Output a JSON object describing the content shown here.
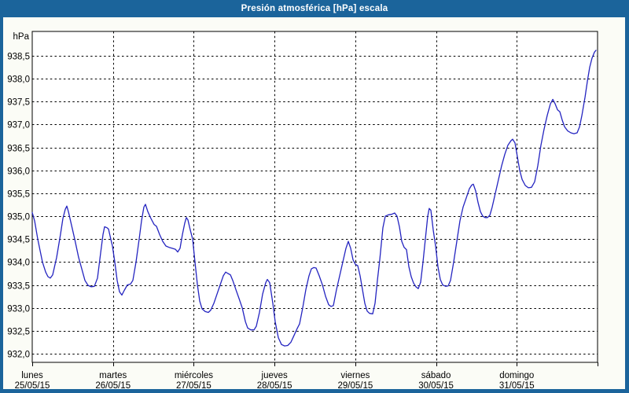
{
  "window": {
    "title": "Presión atmosférica [hPa] escala"
  },
  "colors": {
    "frame_blue": "#1b649b",
    "content_bg": "#fbfcf6",
    "plot_bg": "#ffffff",
    "grid_color": "#000000",
    "series_blue": "#2424c0",
    "title_text": "#ffffff",
    "axis_text": "#000000"
  },
  "chart_data": {
    "type": "line",
    "title": "Presión atmosférica [hPa] escala",
    "xlabel": "",
    "ylabel": "hPa",
    "grid": "dashed",
    "legend_position": "none",
    "y_axis": {
      "unit_label": "hPa",
      "min": 932.0,
      "max": 938.5,
      "tick_step": 0.5,
      "tick_labels": [
        "938,5",
        "938,0",
        "937,5",
        "937,0",
        "936,5",
        "936,0",
        "935,5",
        "935,0",
        "934,5",
        "934,0",
        "933,5",
        "933,0",
        "932,5",
        "932,0"
      ]
    },
    "x_axis": {
      "span_days": 7,
      "days": [
        {
          "name": "lunes",
          "date": "25/05/15"
        },
        {
          "name": "martes",
          "date": "26/05/15"
        },
        {
          "name": "miércoles",
          "date": "27/05/15"
        },
        {
          "name": "jueves",
          "date": "28/05/15"
        },
        {
          "name": "viernes",
          "date": "29/05/15"
        },
        {
          "name": "sábado",
          "date": "30/05/15"
        },
        {
          "name": "domingo",
          "date": "31/05/15"
        }
      ]
    },
    "series": [
      {
        "name": "Presión atmosférica",
        "color": "#2424c0",
        "points": [
          [
            0,
            935.08
          ],
          [
            0.029,
            934.9
          ],
          [
            0.068,
            934.5
          ],
          [
            0.127,
            934.0
          ],
          [
            0.166,
            933.78
          ],
          [
            0.195,
            933.68
          ],
          [
            0.224,
            933.65
          ],
          [
            0.253,
            933.72
          ],
          [
            0.302,
            934.1
          ],
          [
            0.35,
            934.6
          ],
          [
            0.38,
            934.95
          ],
          [
            0.409,
            935.15
          ],
          [
            0.428,
            935.22
          ],
          [
            0.448,
            935.1
          ],
          [
            0.487,
            934.8
          ],
          [
            0.526,
            934.5
          ],
          [
            0.574,
            934.1
          ],
          [
            0.613,
            933.85
          ],
          [
            0.652,
            933.6
          ],
          [
            0.691,
            933.49
          ],
          [
            0.73,
            933.46
          ],
          [
            0.769,
            933.47
          ],
          [
            0.808,
            933.65
          ],
          [
            0.847,
            934.2
          ],
          [
            0.876,
            934.6
          ],
          [
            0.896,
            934.77
          ],
          [
            0.925,
            934.75
          ],
          [
            0.944,
            934.72
          ],
          [
            0.973,
            934.5
          ],
          [
            0.993,
            934.35
          ],
          [
            1.022,
            934.0
          ],
          [
            1.051,
            933.6
          ],
          [
            1.081,
            933.35
          ],
          [
            1.11,
            933.28
          ],
          [
            1.139,
            933.38
          ],
          [
            1.178,
            933.5
          ],
          [
            1.217,
            933.52
          ],
          [
            1.246,
            933.6
          ],
          [
            1.285,
            934.0
          ],
          [
            1.324,
            934.5
          ],
          [
            1.353,
            934.9
          ],
          [
            1.382,
            935.2
          ],
          [
            1.402,
            935.26
          ],
          [
            1.431,
            935.1
          ],
          [
            1.47,
            934.95
          ],
          [
            1.509,
            934.82
          ],
          [
            1.538,
            934.78
          ],
          [
            1.577,
            934.6
          ],
          [
            1.616,
            934.45
          ],
          [
            1.655,
            934.35
          ],
          [
            1.694,
            934.32
          ],
          [
            1.733,
            934.3
          ],
          [
            1.772,
            934.28
          ],
          [
            1.801,
            934.22
          ],
          [
            1.83,
            934.3
          ],
          [
            1.86,
            934.6
          ],
          [
            1.889,
            934.85
          ],
          [
            1.908,
            934.97
          ],
          [
            1.928,
            934.92
          ],
          [
            1.957,
            934.7
          ],
          [
            1.986,
            934.5
          ],
          [
            2.015,
            934.0
          ],
          [
            2.045,
            933.5
          ],
          [
            2.074,
            933.15
          ],
          [
            2.103,
            932.98
          ],
          [
            2.142,
            932.92
          ],
          [
            2.181,
            932.9
          ],
          [
            2.21,
            932.95
          ],
          [
            2.249,
            933.1
          ],
          [
            2.288,
            933.3
          ],
          [
            2.327,
            933.5
          ],
          [
            2.366,
            933.7
          ],
          [
            2.395,
            933.78
          ],
          [
            2.424,
            933.75
          ],
          [
            2.454,
            933.72
          ],
          [
            2.483,
            933.6
          ],
          [
            2.522,
            933.4
          ],
          [
            2.561,
            933.2
          ],
          [
            2.6,
            933.0
          ],
          [
            2.639,
            932.7
          ],
          [
            2.668,
            932.56
          ],
          [
            2.707,
            932.52
          ],
          [
            2.746,
            932.52
          ],
          [
            2.775,
            932.6
          ],
          [
            2.814,
            932.9
          ],
          [
            2.853,
            933.3
          ],
          [
            2.892,
            933.55
          ],
          [
            2.911,
            933.62
          ],
          [
            2.94,
            933.55
          ],
          [
            2.979,
            933.1
          ],
          [
            3.008,
            932.7
          ],
          [
            3.047,
            932.35
          ],
          [
            3.086,
            932.2
          ],
          [
            3.125,
            932.17
          ],
          [
            3.164,
            932.18
          ],
          [
            3.203,
            932.25
          ],
          [
            3.242,
            932.4
          ],
          [
            3.281,
            932.55
          ],
          [
            3.31,
            932.65
          ],
          [
            3.349,
            933.0
          ],
          [
            3.388,
            933.4
          ],
          [
            3.427,
            933.7
          ],
          [
            3.456,
            933.85
          ],
          [
            3.485,
            933.88
          ],
          [
            3.515,
            933.87
          ],
          [
            3.554,
            933.7
          ],
          [
            3.593,
            933.5
          ],
          [
            3.632,
            933.25
          ],
          [
            3.67,
            933.07
          ],
          [
            3.7,
            933.03
          ],
          [
            3.729,
            933.05
          ],
          [
            3.768,
            933.4
          ],
          [
            3.807,
            933.7
          ],
          [
            3.846,
            934.0
          ],
          [
            3.885,
            934.3
          ],
          [
            3.914,
            934.45
          ],
          [
            3.943,
            934.3
          ],
          [
            3.972,
            934.05
          ],
          [
            4.001,
            933.95
          ],
          [
            4.031,
            933.92
          ],
          [
            4.06,
            933.7
          ],
          [
            4.089,
            933.4
          ],
          [
            4.118,
            933.1
          ],
          [
            4.147,
            932.93
          ],
          [
            4.177,
            932.88
          ],
          [
            4.216,
            932.87
          ],
          [
            4.245,
            933.1
          ],
          [
            4.274,
            933.6
          ],
          [
            4.303,
            934.05
          ],
          [
            4.342,
            934.75
          ],
          [
            4.371,
            935.0
          ],
          [
            4.41,
            935.03
          ],
          [
            4.449,
            935.04
          ],
          [
            4.488,
            935.07
          ],
          [
            4.517,
            935.0
          ],
          [
            4.547,
            934.77
          ],
          [
            4.576,
            934.45
          ],
          [
            4.605,
            934.32
          ],
          [
            4.634,
            934.27
          ],
          [
            4.663,
            933.9
          ],
          [
            4.693,
            933.68
          ],
          [
            4.722,
            933.54
          ],
          [
            4.751,
            933.46
          ],
          [
            4.78,
            933.42
          ],
          [
            4.809,
            933.56
          ],
          [
            4.839,
            934.0
          ],
          [
            4.868,
            934.5
          ],
          [
            4.897,
            935.0
          ],
          [
            4.916,
            935.17
          ],
          [
            4.936,
            935.13
          ],
          [
            4.965,
            934.7
          ],
          [
            4.994,
            934.35
          ],
          [
            5.024,
            933.9
          ],
          [
            5.053,
            933.62
          ],
          [
            5.082,
            933.5
          ],
          [
            5.121,
            933.47
          ],
          [
            5.15,
            933.48
          ],
          [
            5.179,
            933.6
          ],
          [
            5.218,
            934.0
          ],
          [
            5.257,
            934.45
          ],
          [
            5.296,
            934.9
          ],
          [
            5.335,
            935.2
          ],
          [
            5.374,
            935.4
          ],
          [
            5.413,
            935.6
          ],
          [
            5.442,
            935.68
          ],
          [
            5.462,
            935.7
          ],
          [
            5.491,
            935.55
          ],
          [
            5.52,
            935.3
          ],
          [
            5.549,
            935.1
          ],
          [
            5.579,
            935.0
          ],
          [
            5.608,
            934.97
          ],
          [
            5.637,
            934.97
          ],
          [
            5.666,
            935.02
          ],
          [
            5.695,
            935.2
          ],
          [
            5.734,
            935.5
          ],
          [
            5.773,
            935.8
          ],
          [
            5.812,
            936.1
          ],
          [
            5.851,
            936.35
          ],
          [
            5.89,
            936.55
          ],
          [
            5.929,
            936.65
          ],
          [
            5.949,
            936.68
          ],
          [
            5.978,
            936.6
          ],
          [
            6.007,
            936.3
          ],
          [
            6.036,
            936.0
          ],
          [
            6.066,
            935.8
          ],
          [
            6.105,
            935.67
          ],
          [
            6.143,
            935.62
          ],
          [
            6.182,
            935.63
          ],
          [
            6.221,
            935.75
          ],
          [
            6.26,
            936.1
          ],
          [
            6.299,
            936.55
          ],
          [
            6.338,
            936.9
          ],
          [
            6.377,
            937.2
          ],
          [
            6.416,
            937.45
          ],
          [
            6.446,
            937.55
          ],
          [
            6.475,
            937.45
          ],
          [
            6.504,
            937.32
          ],
          [
            6.533,
            937.28
          ],
          [
            6.562,
            937.1
          ],
          [
            6.592,
            936.95
          ],
          [
            6.631,
            936.86
          ],
          [
            6.67,
            936.82
          ],
          [
            6.708,
            936.8
          ],
          [
            6.747,
            936.82
          ],
          [
            6.777,
            936.95
          ],
          [
            6.806,
            937.2
          ],
          [
            6.845,
            937.6
          ],
          [
            6.874,
            937.95
          ],
          [
            6.903,
            938.25
          ],
          [
            6.932,
            938.45
          ],
          [
            6.962,
            938.58
          ],
          [
            6.981,
            938.62
          ]
        ]
      }
    ]
  }
}
